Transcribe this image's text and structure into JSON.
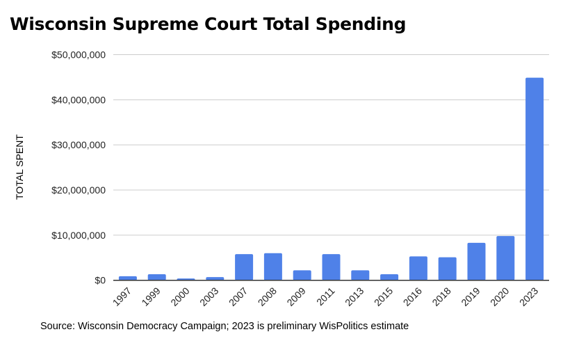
{
  "chart_data": {
    "type": "bar",
    "title": "Wisconsin Supreme Court Total Spending",
    "xlabel": "",
    "ylabel": "TOTAL SPENT",
    "source": "Source: Wisconsin Democracy Campaign; 2023 is preliminary WisPolitics estimate",
    "categories": [
      "1997",
      "1999",
      "2000",
      "2003",
      "2007",
      "2008",
      "2009",
      "2011",
      "2013",
      "2015",
      "2016",
      "2018",
      "2019",
      "2020",
      "2023"
    ],
    "values": [
      900000,
      1350000,
      400000,
      700000,
      5800000,
      6000000,
      2200000,
      5800000,
      2200000,
      1350000,
      5300000,
      5100000,
      8300000,
      9800000,
      44900000
    ],
    "ylim": [
      0,
      50000000
    ],
    "yticks": [
      "$0",
      "$10,000,000",
      "$20,000,000",
      "$30,000,000",
      "$40,000,000",
      "$50,000,000"
    ],
    "grid": true,
    "bar_color": "#4f81e8"
  }
}
